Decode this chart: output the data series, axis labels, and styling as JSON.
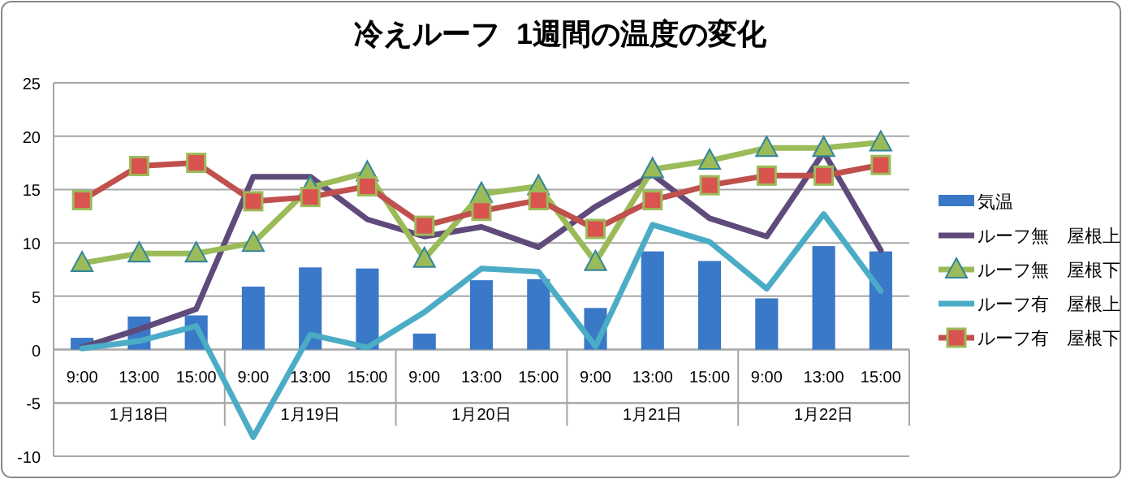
{
  "chart_data": {
    "type": "bar",
    "title": "冷えルーフ  1週間の温度の変化",
    "categories": [
      "9:00",
      "13:00",
      "15:00",
      "9:00",
      "13:00",
      "15:00",
      "9:00",
      "13:00",
      "15:00",
      "9:00",
      "13:00",
      "15:00",
      "9:00",
      "13:00",
      "15:00"
    ],
    "annotations": [
      "1月18日",
      "1月19日",
      "1月20日",
      "1月21日",
      "1月22日"
    ],
    "series": [
      {
        "name": "気温",
        "color": "#3a78c8",
        "values": [
          1.1,
          3.1,
          3.2,
          5.9,
          7.7,
          7.6,
          1.5,
          6.5,
          6.6,
          3.9,
          9.2,
          8.3,
          4.8,
          9.7,
          9.2
        ]
      },
      {
        "name": "ルーフ無　屋根上",
        "type": "line",
        "color": "#604a7b",
        "marker": "none",
        "values": [
          0.2,
          1.9,
          3.8,
          16.2,
          16.2,
          12.2,
          10.6,
          11.5,
          9.6,
          13.4,
          16.4,
          12.3,
          10.6,
          18.5,
          9.3
        ]
      },
      {
        "name": "ルーフ無　屋根下",
        "type": "line",
        "color": "#9bbb59",
        "marker": "triangle",
        "values": [
          8.1,
          9.0,
          9.0,
          10.0,
          15.2,
          16.6,
          8.5,
          14.6,
          15.3,
          8.2,
          16.9,
          17.7,
          18.9,
          18.9,
          19.4
        ]
      },
      {
        "name": "ルーフ有　屋根上",
        "type": "line",
        "color": "#4bacc6",
        "marker": "none",
        "values": [
          0.1,
          0.8,
          2.2,
          -8.2,
          1.4,
          0.2,
          3.5,
          7.6,
          7.3,
          0.3,
          11.7,
          10.1,
          5.7,
          12.7,
          5.5
        ]
      },
      {
        "name": "ルーフ有　屋根下",
        "type": "line",
        "color": "#c0504d",
        "marker": "square",
        "values": [
          14.0,
          17.2,
          17.5,
          13.9,
          14.3,
          15.3,
          11.6,
          13.0,
          14.0,
          11.3,
          14.0,
          15.4,
          16.3,
          16.3,
          17.3
        ]
      }
    ],
    "ylim": [
      -10,
      25
    ],
    "yticks": [
      -10,
      -5,
      0,
      5,
      10,
      15,
      20,
      25
    ],
    "grid": "y",
    "legend": "right"
  }
}
